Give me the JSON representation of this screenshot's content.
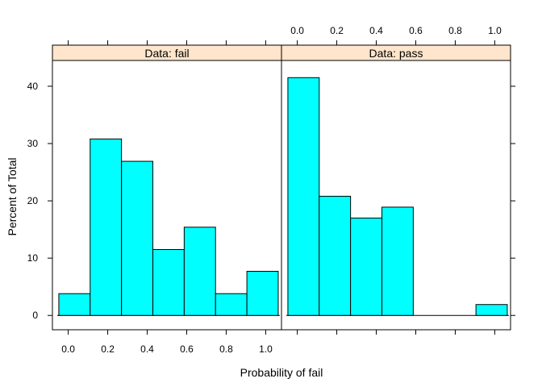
{
  "chart_data": {
    "type": "bar",
    "xlabel": "Probability of fail",
    "ylabel": "Percent of Total",
    "xlim": [
      -0.08,
      1.08
    ],
    "ylim": [
      -2.5,
      44.5
    ],
    "x_ticks": [
      0.0,
      0.2,
      0.4,
      0.6,
      0.8,
      1.0
    ],
    "x_tick_labels": [
      "0.0",
      "0.2",
      "0.4",
      "0.6",
      "0.8",
      "1.0"
    ],
    "y_ticks": [
      0,
      10,
      20,
      30,
      40
    ],
    "y_tick_labels": [
      "0",
      "10",
      "20",
      "30",
      "40"
    ],
    "bin_edges": [
      -0.0476,
      0.1111,
      0.2698,
      0.4286,
      0.5873,
      0.746,
      0.9048,
      1.0635
    ],
    "panels": [
      {
        "name": "Data: fail",
        "values": [
          3.8,
          30.8,
          26.9,
          11.5,
          15.4,
          3.8,
          7.7
        ]
      },
      {
        "name": "Data: pass",
        "values": [
          41.5,
          20.8,
          17.0,
          18.9,
          0,
          0,
          1.9
        ]
      }
    ],
    "bar_color": "#00ffff",
    "strip_color": "#ffe5cc"
  }
}
